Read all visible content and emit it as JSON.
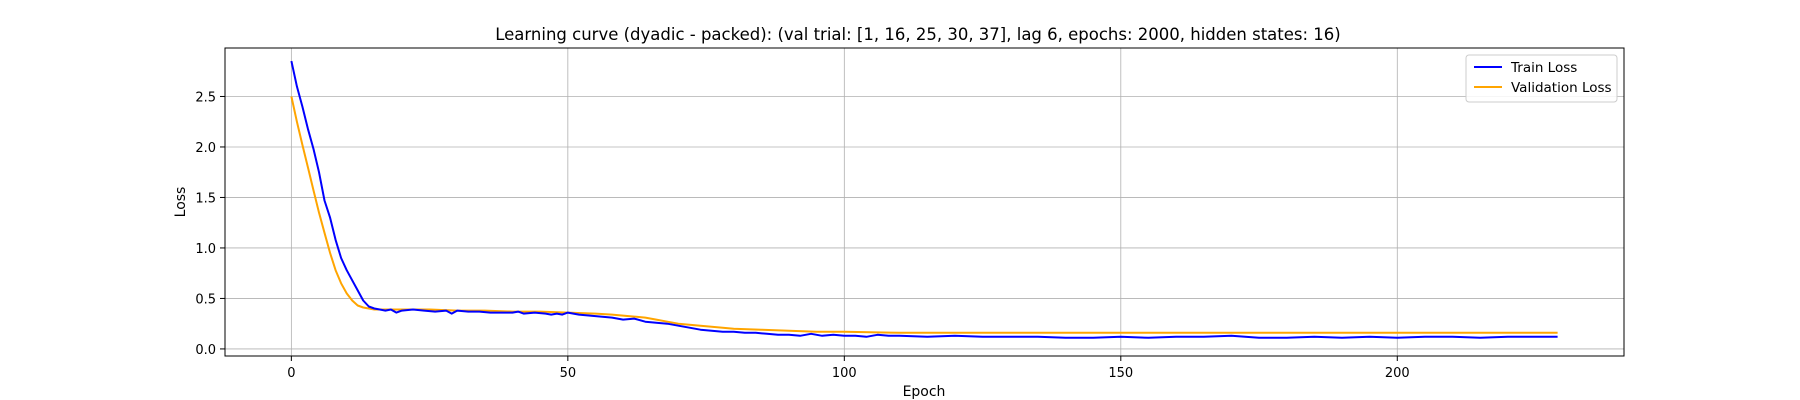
{
  "chart_data": {
    "type": "line",
    "title": "Learning curve (dyadic - packed): (val trial: [1, 16, 25, 30, 37], lag 6, epochs: 2000, hidden states: 16)",
    "xlabel": "Epoch",
    "ylabel": "Loss",
    "xlim": [
      -12,
      241
    ],
    "ylim": [
      -0.07,
      2.98
    ],
    "xticks": [
      0,
      50,
      100,
      150,
      200
    ],
    "yticks": [
      0.0,
      0.5,
      1.0,
      1.5,
      2.0,
      2.5
    ],
    "ytick_labels": [
      "0.0",
      "0.5",
      "1.0",
      "1.5",
      "2.0",
      "2.5"
    ],
    "grid": true,
    "legend_position": "top-right",
    "series": [
      {
        "name": "Train Loss",
        "color": "#0000ff",
        "x": [
          0,
          1,
          2,
          3,
          4,
          5,
          6,
          7,
          8,
          9,
          10,
          11,
          12,
          13,
          14,
          15,
          16,
          17,
          18,
          19,
          20,
          22,
          24,
          26,
          28,
          29,
          30,
          32,
          34,
          36,
          38,
          40,
          41,
          42,
          44,
          46,
          47,
          48,
          49,
          50,
          52,
          54,
          56,
          58,
          60,
          62,
          64,
          66,
          68,
          70,
          72,
          74,
          76,
          78,
          80,
          82,
          84,
          86,
          88,
          90,
          92,
          94,
          96,
          98,
          100,
          102,
          104,
          106,
          108,
          110,
          115,
          120,
          125,
          130,
          135,
          140,
          145,
          150,
          155,
          160,
          165,
          170,
          175,
          180,
          185,
          190,
          195,
          200,
          205,
          210,
          215,
          220,
          225,
          229
        ],
        "values": [
          2.85,
          2.6,
          2.4,
          2.18,
          1.98,
          1.75,
          1.47,
          1.3,
          1.08,
          0.9,
          0.78,
          0.68,
          0.58,
          0.48,
          0.42,
          0.4,
          0.39,
          0.38,
          0.39,
          0.36,
          0.38,
          0.39,
          0.38,
          0.37,
          0.38,
          0.35,
          0.38,
          0.37,
          0.37,
          0.36,
          0.36,
          0.36,
          0.37,
          0.35,
          0.36,
          0.35,
          0.34,
          0.35,
          0.34,
          0.36,
          0.34,
          0.33,
          0.32,
          0.31,
          0.29,
          0.3,
          0.27,
          0.26,
          0.25,
          0.23,
          0.21,
          0.19,
          0.18,
          0.17,
          0.17,
          0.16,
          0.16,
          0.15,
          0.14,
          0.14,
          0.13,
          0.15,
          0.13,
          0.14,
          0.13,
          0.13,
          0.12,
          0.14,
          0.13,
          0.13,
          0.12,
          0.13,
          0.12,
          0.12,
          0.12,
          0.11,
          0.11,
          0.12,
          0.11,
          0.12,
          0.12,
          0.13,
          0.11,
          0.11,
          0.12,
          0.11,
          0.12,
          0.11,
          0.12,
          0.12,
          0.11,
          0.12,
          0.12,
          0.12
        ]
      },
      {
        "name": "Validation Loss",
        "color": "#ffa500",
        "x": [
          0,
          1,
          2,
          3,
          4,
          5,
          6,
          7,
          8,
          9,
          10,
          11,
          12,
          13,
          14,
          15,
          16,
          18,
          20,
          25,
          30,
          35,
          40,
          45,
          50,
          55,
          58,
          60,
          62,
          64,
          66,
          68,
          70,
          72,
          74,
          76,
          78,
          80,
          85,
          90,
          95,
          100,
          110,
          120,
          130,
          140,
          150,
          160,
          170,
          180,
          190,
          200,
          210,
          220,
          229
        ],
        "values": [
          2.5,
          2.25,
          2.02,
          1.8,
          1.57,
          1.35,
          1.15,
          0.95,
          0.78,
          0.65,
          0.55,
          0.48,
          0.43,
          0.41,
          0.4,
          0.39,
          0.39,
          0.39,
          0.39,
          0.39,
          0.38,
          0.38,
          0.37,
          0.37,
          0.36,
          0.35,
          0.34,
          0.33,
          0.32,
          0.31,
          0.29,
          0.27,
          0.25,
          0.24,
          0.23,
          0.22,
          0.21,
          0.2,
          0.19,
          0.18,
          0.17,
          0.17,
          0.16,
          0.16,
          0.16,
          0.16,
          0.16,
          0.16,
          0.16,
          0.16,
          0.16,
          0.16,
          0.16,
          0.16,
          0.16
        ]
      }
    ]
  }
}
